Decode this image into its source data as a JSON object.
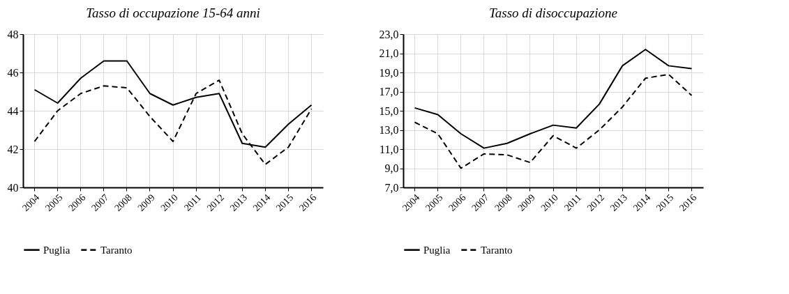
{
  "chart_data": [
    {
      "type": "line",
      "title": "Tasso di occupazione 15-64 anni",
      "categories": [
        "2004",
        "2005",
        "2006",
        "2007",
        "2008",
        "2009",
        "2010",
        "2011",
        "2012",
        "2013",
        "2014",
        "2015",
        "2016"
      ],
      "ylim": [
        40,
        48
      ],
      "yticks": [
        40,
        42,
        44,
        46,
        48
      ],
      "grid": true,
      "legend": "bottom",
      "series": [
        {
          "name": "Puglia",
          "color": "#000000",
          "line_style": "solid",
          "values": [
            45.1,
            44.4,
            45.7,
            46.6,
            46.6,
            44.9,
            44.3,
            44.7,
            44.9,
            42.3,
            42.1,
            43.3,
            44.3
          ]
        },
        {
          "name": "Taranto",
          "color": "#000000",
          "line_style": "dashed",
          "values": [
            42.4,
            44.0,
            44.9,
            45.3,
            45.2,
            43.7,
            42.4,
            44.9,
            45.6,
            42.8,
            41.2,
            42.1,
            44.1
          ]
        }
      ]
    },
    {
      "type": "line",
      "title": "Tasso di disoccupazione",
      "categories": [
        "2004",
        "2005",
        "2006",
        "2007",
        "2008",
        "2009",
        "2010",
        "2011",
        "2012",
        "2013",
        "2014",
        "2015",
        "2016"
      ],
      "ylim": [
        7,
        23
      ],
      "yticks": [
        {
          "value": 7,
          "label": "7,0"
        },
        {
          "value": 9,
          "label": "9,0"
        },
        {
          "value": 11,
          "label": "11,0"
        },
        {
          "value": 13,
          "label": "13,0"
        },
        {
          "value": 15,
          "label": "15,0"
        },
        {
          "value": 17,
          "label": "17,0"
        },
        {
          "value": 19,
          "label": "19,0"
        },
        {
          "value": 21,
          "label": "21,0"
        },
        {
          "value": 23,
          "label": "23,0"
        }
      ],
      "grid": true,
      "legend": "bottom",
      "series": [
        {
          "name": "Puglia",
          "color": "#000000",
          "line_style": "solid",
          "values": [
            15.3,
            14.6,
            12.6,
            11.1,
            11.6,
            12.6,
            13.5,
            13.2,
            15.7,
            19.7,
            21.4,
            19.7,
            19.4
          ]
        },
        {
          "name": "Taranto",
          "color": "#000000",
          "line_style": "dashed",
          "values": [
            13.8,
            12.6,
            9.0,
            10.5,
            10.4,
            9.6,
            12.4,
            11.1,
            13.0,
            15.4,
            18.4,
            18.8,
            16.6
          ]
        }
      ]
    }
  ]
}
